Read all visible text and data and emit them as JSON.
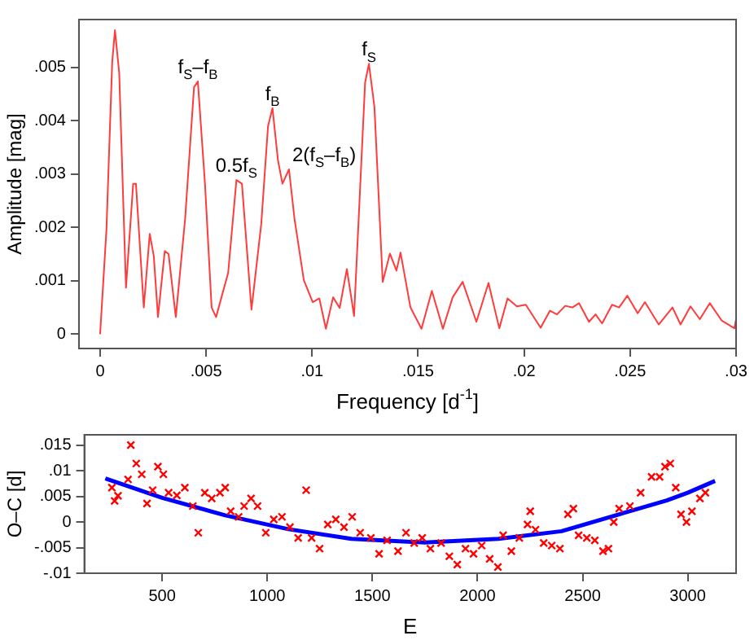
{
  "chart_data": [
    {
      "type": "line",
      "xlabel": "Frequency [d$^{-1}$]",
      "ylabel": "Amplitude [mag]",
      "color": "#ff3b3b",
      "marker": "none",
      "grid": false,
      "legend": false,
      "x": [
        0,
        0.0003,
        0.00057,
        0.0007,
        0.0009,
        0.00122,
        0.00156,
        0.00169,
        0.00206,
        0.00234,
        0.00253,
        0.00273,
        0.00305,
        0.00323,
        0.00357,
        0.00401,
        0.00443,
        0.00461,
        0.00495,
        0.00526,
        0.00547,
        0.00604,
        0.00643,
        0.00669,
        0.00714,
        0.0076,
        0.00792,
        0.00813,
        0.00839,
        0.0086,
        0.00891,
        0.00917,
        0.00961,
        0.01003,
        0.01034,
        0.01065,
        0.01099,
        0.0113,
        0.01164,
        0.01198,
        0.0125,
        0.01268,
        0.01294,
        0.01333,
        0.01367,
        0.01398,
        0.01417,
        0.01464,
        0.01516,
        0.01565,
        0.01617,
        0.01663,
        0.0171,
        0.01775,
        0.01832,
        0.01883,
        0.01922,
        0.01966,
        0.02008,
        0.02078,
        0.02122,
        0.02155,
        0.02194,
        0.02228,
        0.02259,
        0.02306,
        0.02337,
        0.02368,
        0.02415,
        0.02448,
        0.02487,
        0.02536,
        0.0257,
        0.02635,
        0.027,
        0.02738,
        0.02785,
        0.02829,
        0.02876,
        0.02933,
        0.02992,
        0.03
      ],
      "values": [
        0,
        0.00197,
        0.0051,
        0.0057,
        0.0049,
        0.00087,
        0.00282,
        0.00282,
        0.0005,
        0.00188,
        0.00147,
        0.00032,
        0.00156,
        0.0015,
        0.00032,
        0.00216,
        0.00463,
        0.00474,
        0.0028,
        0.0005,
        0.00032,
        0.00115,
        0.00289,
        0.00282,
        0.00046,
        0.00206,
        0.0039,
        0.00424,
        0.00326,
        0.00282,
        0.00309,
        0.00216,
        0.00101,
        0.0006,
        0.00067,
        0.0001,
        0.00069,
        0.00049,
        0.00122,
        0.00034,
        0.00472,
        0.00507,
        0.00426,
        0.00098,
        0.00151,
        0.00119,
        0.00153,
        0.0005,
        0.0001,
        0.00081,
        0.0001,
        0.00069,
        0.00098,
        0.00023,
        0.00096,
        0.00011,
        0.00067,
        0.00052,
        0.00055,
        0.00012,
        0.00044,
        0.00037,
        0.00053,
        0.0005,
        0.00058,
        0.00023,
        0.00037,
        0.0002,
        0.00055,
        0.0005,
        0.00072,
        0.00039,
        0.0006,
        0.00018,
        0.0005,
        0.00018,
        0.00052,
        0.00028,
        0.00058,
        0.00025,
        0.00011,
        0.00028
      ],
      "xlim": [
        -0.001,
        0.03
      ],
      "ylim": [
        -0.00027,
        0.0059
      ],
      "xticks": [
        0,
        {
          "value": 0.005,
          "label": ".005"
        },
        {
          "value": 0.01,
          "label": ".01"
        },
        {
          "value": 0.015,
          "label": ".015"
        },
        {
          "value": 0.02,
          "label": ".02"
        },
        {
          "value": 0.025,
          "label": ".025"
        },
        {
          "value": 0.03,
          "label": ".03"
        }
      ],
      "yticks": [
        0,
        {
          "value": 0.001,
          "label": ".001"
        },
        {
          "value": 0.002,
          "label": ".002"
        },
        {
          "value": 0.003,
          "label": ".003"
        },
        {
          "value": 0.004,
          "label": ".004"
        },
        {
          "value": 0.005,
          "label": ".005"
        }
      ],
      "annotations": [
        {
          "text": "f$_{S}$–f$_{B}$",
          "x": 0.00461,
          "y": 0.00474
        },
        {
          "text": "0.5f$_{S}$",
          "x": 0.00643,
          "y": 0.00289
        },
        {
          "text": "f$_{B}$",
          "x": 0.00813,
          "y": 0.00424
        },
        {
          "text": "2(f$_{S}$–f$_{B}$)",
          "x": 0.00891,
          "y": 0.00309
        },
        {
          "text": "f$_{S}$",
          "x": 0.01268,
          "y": 0.00507
        }
      ]
    },
    {
      "type": "scatter",
      "xlabel": "E",
      "ylabel": "O–C [d]",
      "grid": false,
      "legend": false,
      "series": [
        {
          "marker": "cross",
          "color": "#ff0000",
          "x": [
            261,
            274,
            290,
            338,
            351,
            377,
            403,
            428,
            455,
            480,
            506,
            531,
            570,
            608,
            646,
            672,
            703,
            736,
            775,
            800,
            826,
            864,
            890,
            923,
            954,
            993,
            1031,
            1070,
            1108,
            1147,
            1185,
            1211,
            1249,
            1288,
            1326,
            1365,
            1404,
            1442,
            1493,
            1532,
            1570,
            1622,
            1660,
            1699,
            1737,
            1776,
            1827,
            1866,
            1904,
            1943,
            1981,
            2020,
            2058,
            2097,
            2122,
            2161,
            2199,
            2238,
            2251,
            2276,
            2315,
            2353,
            2392,
            2430,
            2456,
            2481,
            2520,
            2558,
            2597,
            2623,
            2648,
            2674,
            2725,
            2776,
            2828,
            2866,
            2892,
            2917,
            2943,
            2968,
            2994,
            3020,
            3058,
            3084
          ],
          "values": [
            0.0067,
            0.0041,
            0.0051,
            0.0083,
            0.015,
            0.0114,
            0.0093,
            0.0036,
            0.0062,
            0.0108,
            0.0093,
            0.0057,
            0.0052,
            0.0067,
            0.0031,
            -0.0021,
            0.0057,
            0.0046,
            0.0057,
            0.0067,
            0.0021,
            0.001,
            0.0031,
            0.0046,
            0.0031,
            -0.0021,
            0.0005,
            0.001,
            -0.001,
            -0.0031,
            0.0062,
            -0.0031,
            -0.0052,
            -0.0005,
            0.0005,
            -0.001,
            0.001,
            -0.0021,
            -0.0031,
            -0.0062,
            -0.0036,
            -0.0057,
            -0.0021,
            -0.0041,
            -0.0031,
            -0.0052,
            -0.0041,
            -0.0067,
            -0.0083,
            -0.0052,
            -0.0062,
            -0.0046,
            -0.0072,
            -0.0088,
            -0.0026,
            -0.0057,
            -0.0031,
            -0.0005,
            0.0021,
            -0.0015,
            -0.0041,
            -0.0046,
            -0.0052,
            0.0015,
            0.0026,
            -0.0026,
            -0.0031,
            -0.0036,
            -0.0057,
            -0.0052,
            0,
            0.0026,
            0.0031,
            0.0057,
            0.0088,
            0.0088,
            0.0108,
            0.0114,
            0.0067,
            0.0015,
            0,
            0.0021,
            0.0046,
            0.0057
          ]
        },
        {
          "type": "line",
          "color": "#0000ff",
          "x": [
            230,
            500,
            800,
            1100,
            1400,
            1750,
            2100,
            2400,
            2700,
            2900,
            3000,
            3130
          ],
          "values": [
            0.0085,
            0.0047,
            0.0013,
            -0.0014,
            -0.0033,
            -0.004,
            -0.0033,
            -0.0018,
            0.0018,
            0.0042,
            0.0057,
            0.008
          ]
        }
      ],
      "xlim": [
        130,
        3230
      ],
      "ylim": [
        -0.01,
        0.017
      ],
      "xticks": [
        500,
        1000,
        1500,
        2000,
        2500,
        3000
      ],
      "yticks": [
        {
          "value": -0.01,
          "label": "-.01"
        },
        {
          "value": -0.005,
          "label": "-.005"
        },
        0,
        {
          "value": 0.005,
          "label": ".005"
        },
        {
          "value": 0.01,
          "label": ".01"
        },
        {
          "value": 0.015,
          "label": ".015"
        }
      ]
    }
  ]
}
